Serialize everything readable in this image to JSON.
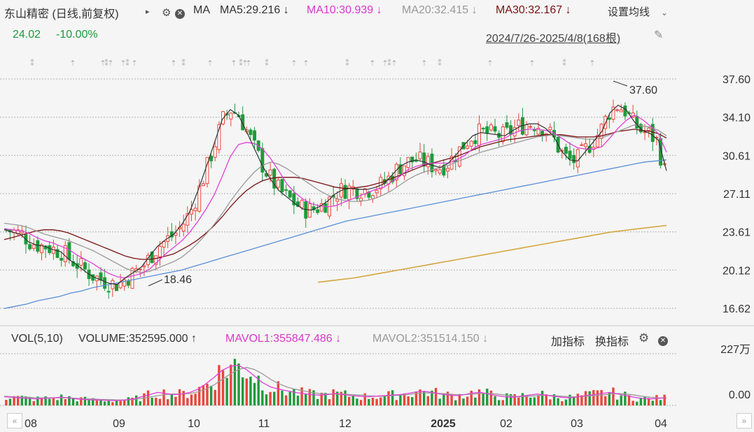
{
  "header": {
    "title": "东山精密 (日线,前复权)",
    "ma_label": "MA",
    "ma5": "MA5:29.216 ↓",
    "ma10": "MA10:30.939 ↓",
    "ma20": "MA20:32.415 ↓",
    "ma30": "MA30:32.167 ↓",
    "settings": "设置均线",
    "price": "24.02",
    "change": "-10.00%",
    "range": "2024/7/26-2025/4/8(168根)"
  },
  "volume_header": {
    "vol_label": "VOL(5,10)",
    "volume": "VOLUME:352595.000 ↑",
    "mavol1": "MAVOL1:355847.486 ↓",
    "mavol2": "MAVOL2:351514.150 ↓",
    "add_indicator": "加指标",
    "switch_indicator": "换指标"
  },
  "colors": {
    "up": "#e8473a",
    "down": "#1f9a3c",
    "ma5": "#333333",
    "ma10": "#e040d8",
    "ma20": "#9a9a9a",
    "ma30": "#7a1212",
    "ma_long1": "#5a8fd8",
    "ma_long2": "#d4a640",
    "grid": "#b0b0b0"
  },
  "chart_data": {
    "type": "candlestick",
    "price_axis": {
      "ticks": [
        37.6,
        34.1,
        30.61,
        27.11,
        23.61,
        20.12,
        16.62
      ],
      "range": [
        16.62,
        37.6
      ]
    },
    "volume_axis": {
      "ticks": [
        "227万",
        "0.00"
      ]
    },
    "x_labels": [
      "08",
      "09",
      "10",
      "11",
      "12",
      "2025",
      "02",
      "03",
      "04"
    ],
    "annotations": [
      {
        "text": "37.60",
        "type": "high"
      },
      {
        "text": "18.46",
        "type": "low"
      }
    ],
    "ma_lines": {
      "ma5": [
        23.8,
        23.6,
        23.4,
        22.7,
        22.4,
        22.3,
        22.0,
        21.8,
        21.1,
        20.6,
        20.0,
        19.5,
        19.2,
        18.9,
        18.8,
        19.4,
        19.9,
        20.4,
        21.4,
        22.3,
        22.9,
        23.4,
        24.3,
        25.5,
        27.4,
        29.5,
        31.7,
        33.9,
        34.8,
        34.3,
        32.8,
        31.2,
        29.6,
        28.4,
        27.4,
        26.8,
        26.2,
        25.7,
        25.6,
        25.9,
        26.4,
        27.1,
        27.5,
        27.6,
        27.5,
        27.5,
        27.7,
        28.0,
        28.8,
        29.6,
        30.0,
        30.2,
        30.0,
        29.7,
        29.5,
        29.9,
        30.7,
        31.6,
        32.4,
        32.7,
        32.6,
        32.5,
        32.4,
        32.9,
        33.3,
        33.5,
        33.5,
        33.1,
        32.4,
        31.0,
        30.2,
        30.1,
        31.0,
        31.9,
        32.8,
        34.5,
        35.2,
        34.8,
        33.7,
        32.9,
        32.6,
        32.0,
        29.2
      ],
      "ma10": [
        23.9,
        23.8,
        23.7,
        23.5,
        23.1,
        22.8,
        22.6,
        22.3,
        22.0,
        21.5,
        21.1,
        20.7,
        20.2,
        19.8,
        19.5,
        19.4,
        19.6,
        19.8,
        20.2,
        20.9,
        21.6,
        22.2,
        22.8,
        23.6,
        24.6,
        25.7,
        27.0,
        28.7,
        30.5,
        31.6,
        31.8,
        31.7,
        31.2,
        30.3,
        29.2,
        28.0,
        27.2,
        26.6,
        26.2,
        26.0,
        25.9,
        26.0,
        26.3,
        26.6,
        26.9,
        27.2,
        27.5,
        27.7,
        28.2,
        28.7,
        29.3,
        29.6,
        29.8,
        29.9,
        29.9,
        29.9,
        30.2,
        30.6,
        31.2,
        31.6,
        31.8,
        32.0,
        32.2,
        32.6,
        32.9,
        33.0,
        33.0,
        32.9,
        32.7,
        32.2,
        31.7,
        31.3,
        31.2,
        31.2,
        31.4,
        32.2,
        33.1,
        33.8,
        34.3,
        33.9,
        33.3,
        32.6,
        30.9
      ],
      "ma20": [
        24.4,
        24.3,
        24.2,
        24.0,
        23.7,
        23.4,
        23.2,
        23.0,
        22.8,
        22.5,
        22.2,
        21.9,
        21.5,
        21.1,
        20.7,
        20.3,
        20.0,
        19.9,
        20.0,
        20.3,
        20.6,
        20.9,
        21.3,
        21.9,
        22.6,
        23.4,
        24.3,
        25.3,
        26.4,
        27.4,
        28.3,
        29.1,
        29.7,
        30.0,
        29.8,
        29.4,
        28.9,
        28.4,
        27.9,
        27.4,
        27.0,
        26.7,
        26.5,
        26.4,
        26.4,
        26.5,
        26.7,
        27.0,
        27.4,
        27.9,
        28.4,
        28.8,
        29.1,
        29.3,
        29.5,
        29.7,
        30.0,
        30.3,
        30.6,
        30.9,
        31.1,
        31.3,
        31.5,
        31.7,
        31.9,
        32.1,
        32.3,
        32.4,
        32.5,
        32.4,
        32.3,
        32.2,
        32.1,
        32.1,
        32.2,
        32.5,
        32.8,
        33.1,
        33.4,
        33.3,
        33.2,
        32.9,
        32.4
      ],
      "ma30": [
        22.9,
        23.1,
        23.3,
        23.5,
        23.7,
        23.8,
        23.8,
        23.7,
        23.5,
        23.2,
        22.9,
        22.6,
        22.3,
        22.0,
        21.7,
        21.4,
        21.2,
        21.1,
        21.1,
        21.2,
        21.4,
        21.6,
        22.0,
        22.4,
        22.9,
        23.5,
        24.2,
        25.0,
        25.9,
        26.7,
        27.4,
        27.9,
        28.3,
        28.5,
        28.6,
        28.6,
        28.6,
        28.5,
        28.3,
        28.1,
        27.9,
        27.7,
        27.6,
        27.6,
        27.7,
        27.8,
        28.0,
        28.2,
        28.5,
        28.8,
        29.1,
        29.4,
        29.7,
        29.9,
        30.1,
        30.3,
        30.5,
        30.8,
        31.1,
        31.4,
        31.6,
        31.8,
        32.0,
        32.1,
        32.2,
        32.3,
        32.4,
        32.5,
        32.5,
        32.5,
        32.4,
        32.3,
        32.3,
        32.3,
        32.4,
        32.6,
        32.8,
        32.9,
        33.0,
        32.9,
        32.8,
        32.6,
        32.2
      ],
      "ma_long1": [
        16.6,
        16.8,
        17.0,
        17.3,
        17.5,
        17.7,
        18.0,
        18.2,
        18.5,
        18.7,
        18.9,
        19.1,
        19.3,
        19.5,
        19.7,
        19.9,
        20.1,
        20.4,
        20.7,
        21.0,
        21.3,
        21.6,
        21.9,
        22.2,
        22.5,
        22.8,
        23.1,
        23.4,
        23.7,
        24.0,
        24.3,
        24.6,
        24.8,
        25.0,
        25.2,
        25.4,
        25.6,
        25.8,
        26.0,
        26.2,
        26.4,
        26.6,
        26.8,
        27.0,
        27.2,
        27.4,
        27.6,
        27.8,
        28.0,
        28.2,
        28.4,
        28.6,
        28.8,
        29.0,
        29.2,
        29.4,
        29.6,
        29.8,
        30.0,
        30.1,
        30.2
      ],
      "ma_long2": [
        19.0,
        19.2,
        19.4,
        19.7,
        20.0,
        20.3,
        20.6,
        20.9,
        21.2,
        21.5,
        21.8,
        22.1,
        22.4,
        22.7,
        23.0,
        23.3,
        23.6,
        23.8,
        24.0,
        24.2
      ]
    },
    "volume_ma": {
      "mavol1": [
        0.16,
        0.15,
        0.14,
        0.13,
        0.12,
        0.13,
        0.14,
        0.15,
        0.14,
        0.12,
        0.11,
        0.1,
        0.1,
        0.09,
        0.09,
        0.1,
        0.12,
        0.16,
        0.2,
        0.24,
        0.22,
        0.2,
        0.21,
        0.24,
        0.3,
        0.4,
        0.52,
        0.65,
        0.72,
        0.74,
        0.66,
        0.54,
        0.42,
        0.34,
        0.3,
        0.27,
        0.24,
        0.22,
        0.2,
        0.19,
        0.2,
        0.22,
        0.2,
        0.18,
        0.17,
        0.16,
        0.17,
        0.18,
        0.19,
        0.2,
        0.22,
        0.25,
        0.26,
        0.24,
        0.21,
        0.19,
        0.18,
        0.2,
        0.23,
        0.24,
        0.21,
        0.18,
        0.16,
        0.15,
        0.17,
        0.19,
        0.21,
        0.19,
        0.17,
        0.15,
        0.14,
        0.16,
        0.18,
        0.2,
        0.22,
        0.24,
        0.21,
        0.18,
        0.15,
        0.13,
        0.12,
        0.13,
        0.14
      ],
      "mavol2": [
        0.17,
        0.16,
        0.15,
        0.15,
        0.14,
        0.14,
        0.14,
        0.14,
        0.14,
        0.13,
        0.12,
        0.12,
        0.11,
        0.11,
        0.1,
        0.1,
        0.11,
        0.13,
        0.15,
        0.18,
        0.2,
        0.21,
        0.21,
        0.22,
        0.25,
        0.3,
        0.38,
        0.48,
        0.58,
        0.66,
        0.7,
        0.66,
        0.58,
        0.48,
        0.4,
        0.34,
        0.3,
        0.27,
        0.24,
        0.22,
        0.21,
        0.21,
        0.21,
        0.2,
        0.19,
        0.18,
        0.17,
        0.17,
        0.18,
        0.19,
        0.2,
        0.22,
        0.23,
        0.23,
        0.22,
        0.21,
        0.2,
        0.2,
        0.21,
        0.22,
        0.22,
        0.21,
        0.19,
        0.17,
        0.16,
        0.17,
        0.18,
        0.19,
        0.18,
        0.17,
        0.16,
        0.16,
        0.17,
        0.18,
        0.19,
        0.21,
        0.22,
        0.21,
        0.19,
        0.17,
        0.15,
        0.14,
        0.14
      ]
    }
  }
}
